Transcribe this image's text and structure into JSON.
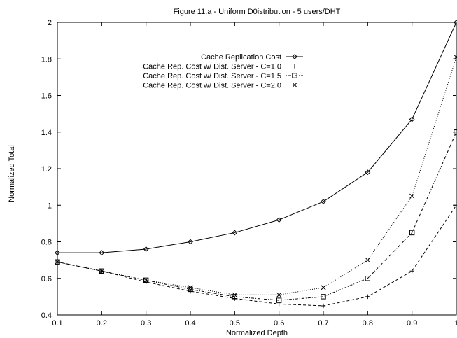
{
  "chart_data": {
    "type": "line",
    "title": "Figure 11.a - Uniform D0istribution - 5 users/DHT",
    "xlabel": "Normalized Depth",
    "ylabel": "Normalized Total",
    "xlim": [
      0.1,
      1.0
    ],
    "ylim": [
      0.4,
      2.0
    ],
    "grid": false,
    "legend_position": "top-center",
    "x": [
      0.1,
      0.2,
      0.3,
      0.4,
      0.5,
      0.6,
      0.7,
      0.8,
      0.9,
      1.0
    ],
    "x_tick_labels": [
      "0.1",
      "0.2",
      "0.3",
      "0.4",
      "0.5",
      "0.6",
      "0.7",
      "0.8",
      "0.9",
      "1"
    ],
    "y_ticks": [
      0.4,
      0.6,
      0.8,
      1.0,
      1.2,
      1.4,
      1.6,
      1.8,
      2.0
    ],
    "y_tick_labels": [
      "0.4",
      "0.6",
      "0.8",
      "1",
      "1.2",
      "1.4",
      "1.6",
      "1.8",
      "2"
    ],
    "series": [
      {
        "name": "Cache Replication Cost",
        "marker": "diamond",
        "line_style": "solid",
        "values": [
          0.74,
          0.74,
          0.76,
          0.8,
          0.85,
          0.92,
          1.02,
          1.18,
          1.47,
          2.0
        ]
      },
      {
        "name": "Cache Rep. Cost w/ Dist. Server - C=1.0",
        "marker": "plus",
        "line_style": "dashed",
        "values": [
          0.69,
          0.64,
          0.58,
          0.53,
          0.49,
          0.46,
          0.45,
          0.5,
          0.64,
          1.0
        ]
      },
      {
        "name": "Cache Rep. Cost w/ Dist. Server - C=1.5",
        "marker": "square",
        "line_style": "dotted-dashed",
        "values": [
          0.69,
          0.64,
          0.59,
          0.54,
          0.5,
          0.48,
          0.5,
          0.6,
          0.85,
          1.4
        ]
      },
      {
        "name": "Cache Rep. Cost w/ Dist. Server - C=2.0",
        "marker": "cross",
        "line_style": "dotted",
        "values": [
          0.69,
          0.64,
          0.59,
          0.55,
          0.51,
          0.51,
          0.55,
          0.7,
          1.05,
          1.81
        ]
      }
    ]
  }
}
